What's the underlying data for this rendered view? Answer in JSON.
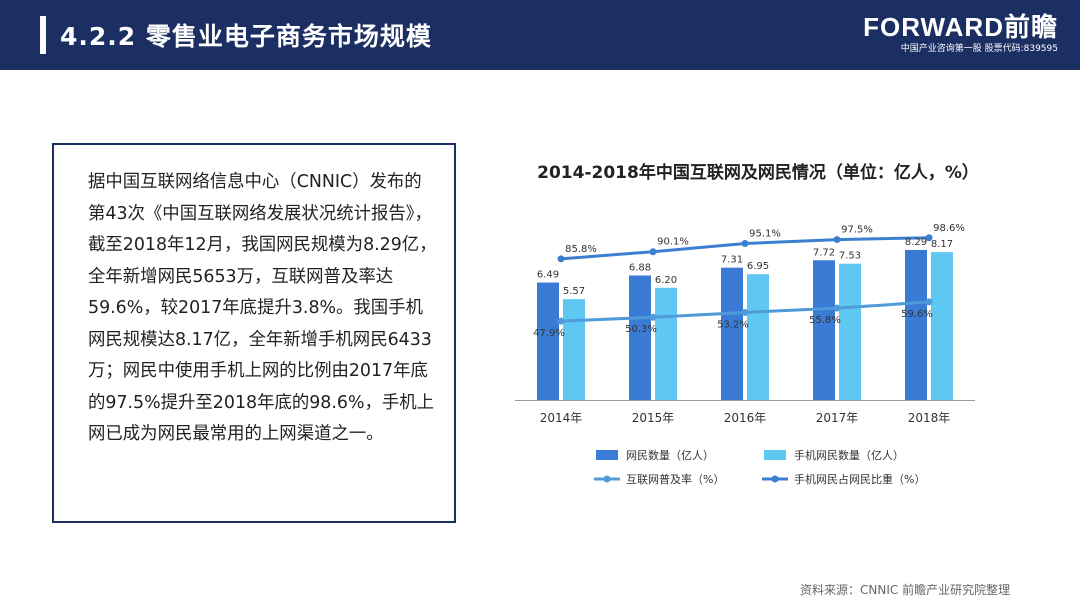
{
  "header": {
    "title": "4.2.2  零售业电子商务市场规模",
    "brand_logo": "FORWARD前瞻",
    "brand_sub": "中国产业咨询第一股  股票代码:839595"
  },
  "body_text": "据中国互联网络信息中心（CNNIC）发布的第43次《中国互联网络发展状况统计报告》，截至2018年12月，我国网民规模为8.29亿，全年新增网民5653万，互联网普及率达59.6%，较2017年底提升3.8%。我国手机网民规模达8.17亿，全年新增手机网民6433万；网民中使用手机上网的比例由2017年底的97.5%提升至2018年底的98.6%，手机上网已成为网民最常用的上网渠道之一。",
  "source": "资料来源：CNNIC 前瞻产业研究院整理",
  "chart_data": {
    "type": "bar",
    "title": "2014-2018年中国互联网及网民情况（单位：亿人，%）",
    "categories": [
      "2014年",
      "2015年",
      "2016年",
      "2017年",
      "2018年"
    ],
    "series": [
      {
        "name": "网民数量（亿人）",
        "kind": "bar",
        "values": [
          6.49,
          6.88,
          7.31,
          7.72,
          8.29
        ],
        "labels": [
          "6.49",
          "6.88",
          "7.31",
          "7.72",
          "8.29"
        ],
        "color": "#3a7bd5"
      },
      {
        "name": "手机网民数量（亿人）",
        "kind": "bar",
        "values": [
          5.57,
          6.2,
          6.95,
          7.53,
          8.17
        ],
        "labels": [
          "5.57",
          "6.20",
          "6.95",
          "7.53",
          "8.17"
        ],
        "color": "#5ec8f2"
      },
      {
        "name": "互联网普及率（%）",
        "kind": "line",
        "values": [
          47.9,
          50.3,
          53.2,
          55.8,
          59.6
        ],
        "labels": [
          "47.9%",
          "50.3%",
          "53.2%",
          "55.8%",
          "59.6%"
        ],
        "color": "#4f9ad8"
      },
      {
        "name": "手机网民占网民比重（%）",
        "kind": "line",
        "values": [
          85.8,
          90.1,
          95.1,
          97.5,
          98.6
        ],
        "labels": [
          "85.8%",
          "90.1%",
          "95.1%",
          "97.5%",
          "98.6%"
        ],
        "color": "#3c7fd0"
      }
    ],
    "ylim_bar": [
      0,
      10
    ],
    "ylim_line": [
      0,
      110
    ],
    "legend_position": "bottom",
    "grid": false
  }
}
